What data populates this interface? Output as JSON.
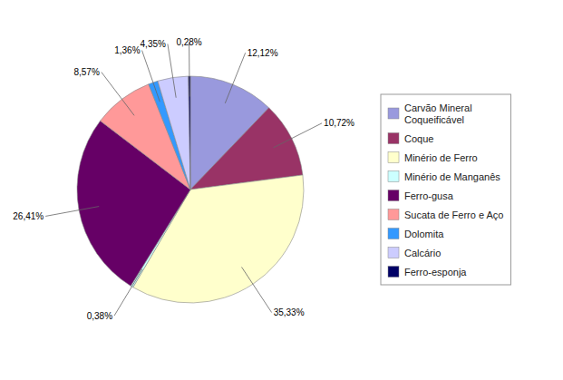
{
  "chart_data": {
    "type": "pie",
    "categories": [
      "Carvão Mineral\nCoqueificável",
      "Coque",
      "Minério de Ferro",
      "Minério de Manganês",
      "Ferro-gusa",
      "Sucata de Ferro e Aço",
      "Dolomita",
      "Calcário",
      "Ferro-esponja"
    ],
    "values": [
      12.12,
      10.72,
      35.33,
      0.38,
      26.41,
      8.57,
      1.36,
      4.35,
      0.28
    ],
    "value_labels": [
      "12,12%",
      "10,72%",
      "35,33%",
      "0,38%",
      "26,41%",
      "8,57%",
      "1,36%",
      "4,35%",
      "0,28%"
    ],
    "colors": [
      "#9999DD",
      "#993366",
      "#FFFFCC",
      "#CCFFFF",
      "#660066",
      "#FF9999",
      "#3399FF",
      "#CCCCFF",
      "#000066"
    ],
    "data_labels": true,
    "legend": "right"
  }
}
